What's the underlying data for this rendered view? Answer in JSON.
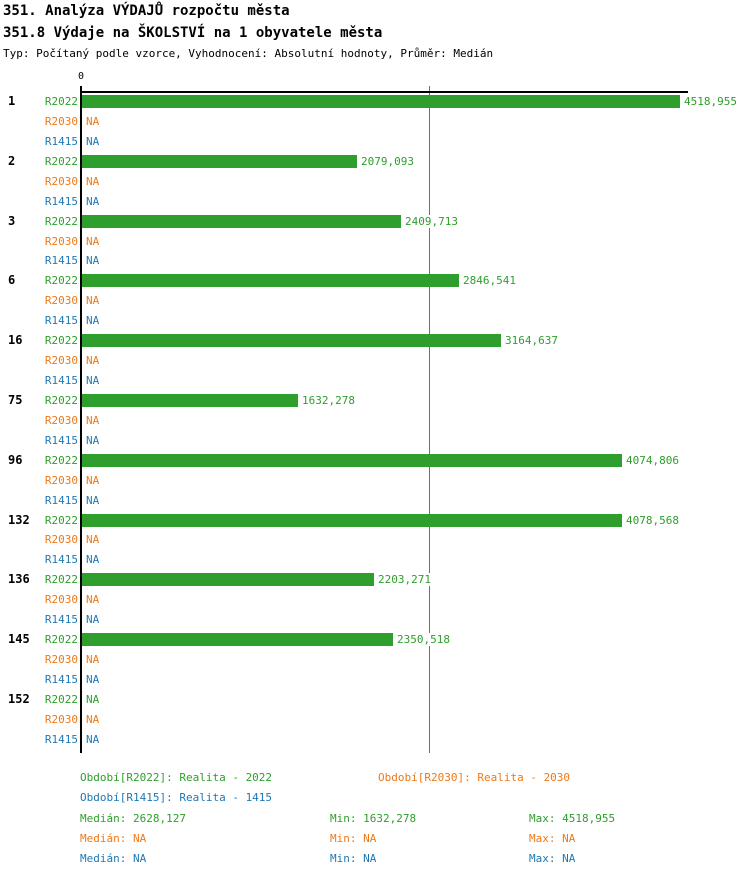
{
  "title": "351. Analýza VÝDAJŮ rozpočtu města",
  "subtitle": "351.8 Výdaje na ŠKOLSTVÍ na 1 obyvatele města",
  "meta_line": "Typ: Počítaný podle vzorce, Vyhodnocení: Absolutní hodnoty, Průměr: Medián",
  "colors": {
    "r2022_green": "#2e9e2c",
    "r2030_orange": "#ee7918",
    "r1415_blue": "#1f78b4",
    "axis_black": "#000000",
    "median_line_green": "#2e9e2c",
    "background": "#ffffff"
  },
  "na_text": "NA",
  "chart_data": {
    "type": "bar",
    "orientation": "horizontal",
    "title": "351.8 Výdaje na ŠKOLSTVÍ na 1 obyvatele města",
    "xlabel": "",
    "ylabel": "",
    "axis": {
      "x_min": 0,
      "tick_labels": [
        "0"
      ],
      "grid": false,
      "median_reference_line": 2628.127
    },
    "categories": [
      "1",
      "2",
      "3",
      "6",
      "16",
      "75",
      "96",
      "132",
      "136",
      "145",
      "152"
    ],
    "series": [
      {
        "name": "R2022",
        "color": "#2e9e2c",
        "values": [
          4518.955,
          2079.093,
          2409.713,
          2846.541,
          3164.637,
          1632.278,
          4074.806,
          4078.568,
          2203.271,
          2350.518,
          null
        ],
        "labels": [
          "4518,955",
          "2079,093",
          "2409,713",
          "2846,541",
          "3164,637",
          "1632,278",
          "4074,806",
          "4078,568",
          "2203,271",
          "2350,518",
          "NA"
        ]
      },
      {
        "name": "R2030",
        "color": "#ee7918",
        "values": [
          null,
          null,
          null,
          null,
          null,
          null,
          null,
          null,
          null,
          null,
          null
        ],
        "labels": [
          "NA",
          "NA",
          "NA",
          "NA",
          "NA",
          "NA",
          "NA",
          "NA",
          "NA",
          "NA",
          "NA"
        ]
      },
      {
        "name": "R1415",
        "color": "#1f78b4",
        "values": [
          null,
          null,
          null,
          null,
          null,
          null,
          null,
          null,
          null,
          null,
          null
        ],
        "labels": [
          "NA",
          "NA",
          "NA",
          "NA",
          "NA",
          "NA",
          "NA",
          "NA",
          "NA",
          "NA",
          "NA"
        ]
      }
    ],
    "legend_position": "bottom"
  },
  "legend": {
    "period_items": [
      {
        "text": "Období[R2022]: Realita - 2022",
        "color": "#2e9e2c",
        "col": 0,
        "row": 0
      },
      {
        "text": "Období[R2030]: Realita - 2030",
        "color": "#ee7918",
        "col": 1,
        "row": 0
      },
      {
        "text": "Období[R1415]: Realita - 1415",
        "color": "#1f78b4",
        "col": 0,
        "row": 1
      }
    ],
    "stat_labels": {
      "median": "Medián:",
      "min": "Min:",
      "max": "Max:"
    },
    "stats_rows": [
      {
        "color": "#2e9e2c",
        "median": "2628,127",
        "min": "1632,278",
        "max": "4518,955"
      },
      {
        "color": "#ee7918",
        "median": "NA",
        "min": "NA",
        "max": "NA"
      },
      {
        "color": "#1f78b4",
        "median": "NA",
        "min": "NA",
        "max": "NA"
      }
    ]
  }
}
